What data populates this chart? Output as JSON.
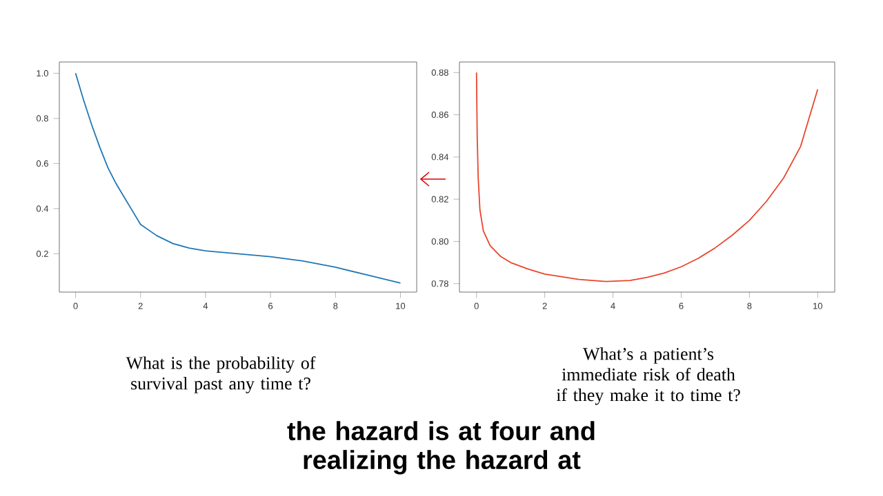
{
  "chart_data": [
    {
      "type": "line",
      "annotations": [
        "What is the probability of survival past any time t?",
        "the hazard is at four and realizing the hazard at"
      ],
      "x": [
        0,
        0.25,
        0.5,
        0.75,
        1,
        1.25,
        1.5,
        1.75,
        2,
        2.5,
        3,
        3.5,
        4,
        5,
        6,
        7,
        8,
        9,
        10
      ],
      "series": [
        {
          "color": "#1f77b4",
          "values": [
            1.0,
            0.88,
            0.77,
            0.67,
            0.58,
            0.51,
            0.45,
            0.39,
            0.33,
            0.28,
            0.245,
            0.225,
            0.213,
            0.2,
            0.187,
            0.168,
            0.14,
            0.105,
            0.07
          ]
        }
      ],
      "xlim": [
        -0.5,
        10.5
      ],
      "ylim": [
        0.03,
        1.05
      ],
      "xticks": [
        0,
        2,
        4,
        6,
        8,
        10
      ],
      "yticks": [
        0.2,
        0.4,
        0.6,
        0.8,
        {
          "value": 1,
          "label": "1.0"
        }
      ]
    },
    {
      "type": "line",
      "annotations": [
        "What’s a patient’s immediate risk of death if they make it to time t?"
      ],
      "x": [
        0,
        0.02,
        0.05,
        0.1,
        0.2,
        0.4,
        0.7,
        1,
        1.5,
        2,
        3,
        3.8,
        4.5,
        5,
        5.5,
        6,
        6.5,
        7,
        7.5,
        8,
        8.5,
        9,
        9.5,
        10
      ],
      "series": [
        {
          "color": "#e8452c",
          "values": [
            0.88,
            0.85,
            0.83,
            0.815,
            0.805,
            0.798,
            0.793,
            0.79,
            0.787,
            0.7845,
            0.782,
            0.781,
            0.7815,
            0.783,
            0.785,
            0.788,
            0.792,
            0.797,
            0.803,
            0.81,
            0.819,
            0.83,
            0.845,
            0.872
          ]
        }
      ],
      "xlim": [
        -0.5,
        10.5
      ],
      "ylim": [
        0.776,
        0.885
      ],
      "xticks": [
        0,
        2,
        4,
        6,
        8,
        10
      ],
      "yticks": [
        0.78,
        {
          "value": 0.8,
          "label": "0.80"
        },
        0.82,
        0.84,
        0.86,
        0.88
      ]
    }
  ]
}
